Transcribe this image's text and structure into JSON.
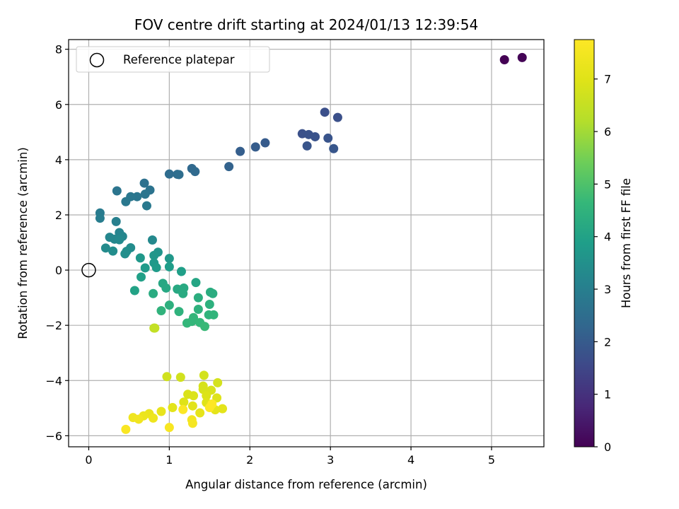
{
  "chart_data": {
    "type": "scatter",
    "title": "FOV centre drift starting at 2024/01/13 12:39:54",
    "xlabel": "Angular distance from reference (arcmin)",
    "ylabel": "Rotation from reference (arcmin)",
    "xlim": [
      -0.25,
      5.65
    ],
    "ylim": [
      -6.4,
      8.35
    ],
    "xticks": [
      0,
      1,
      2,
      3,
      4,
      5
    ],
    "yticks": [
      -6,
      -4,
      -2,
      0,
      2,
      4,
      6,
      8
    ],
    "grid": true,
    "legend": {
      "placement": "top-left",
      "entries": [
        "Reference platepar"
      ]
    },
    "reference_point": {
      "x": 0,
      "y": 0,
      "label": "Reference platepar"
    },
    "colorbar": {
      "label": "Hours from first FF file",
      "min": 0,
      "max": 7.75,
      "ticks": [
        0,
        1,
        2,
        3,
        4,
        5,
        6,
        7
      ],
      "colormap": "viridis"
    },
    "points": [
      {
        "x": 5.16,
        "y": 7.62,
        "h": 0.0
      },
      {
        "x": 5.38,
        "y": 7.7,
        "h": 0.05
      },
      {
        "x": 2.93,
        "y": 5.72,
        "h": 1.7
      },
      {
        "x": 3.09,
        "y": 5.53,
        "h": 1.72
      },
      {
        "x": 2.65,
        "y": 4.94,
        "h": 1.75
      },
      {
        "x": 2.73,
        "y": 4.91,
        "h": 1.78
      },
      {
        "x": 2.81,
        "y": 4.83,
        "h": 1.8
      },
      {
        "x": 2.97,
        "y": 4.78,
        "h": 1.82
      },
      {
        "x": 2.71,
        "y": 4.5,
        "h": 1.85
      },
      {
        "x": 3.04,
        "y": 4.4,
        "h": 1.88
      },
      {
        "x": 2.19,
        "y": 4.61,
        "h": 2.0
      },
      {
        "x": 2.07,
        "y": 4.46,
        "h": 2.05
      },
      {
        "x": 1.88,
        "y": 4.3,
        "h": 2.1
      },
      {
        "x": 1.74,
        "y": 3.75,
        "h": 2.2
      },
      {
        "x": 1.28,
        "y": 3.68,
        "h": 2.35
      },
      {
        "x": 1.32,
        "y": 3.57,
        "h": 2.38
      },
      {
        "x": 1.0,
        "y": 3.48,
        "h": 2.45
      },
      {
        "x": 1.1,
        "y": 3.47,
        "h": 2.48
      },
      {
        "x": 1.12,
        "y": 3.46,
        "h": 2.5
      },
      {
        "x": 0.69,
        "y": 3.15,
        "h": 2.6
      },
      {
        "x": 0.76,
        "y": 2.9,
        "h": 2.65
      },
      {
        "x": 0.35,
        "y": 2.87,
        "h": 2.7
      },
      {
        "x": 0.7,
        "y": 2.75,
        "h": 2.72
      },
      {
        "x": 0.6,
        "y": 2.66,
        "h": 2.75
      },
      {
        "x": 0.52,
        "y": 2.66,
        "h": 2.78
      },
      {
        "x": 0.46,
        "y": 2.48,
        "h": 2.8
      },
      {
        "x": 0.72,
        "y": 2.33,
        "h": 2.82
      },
      {
        "x": 0.14,
        "y": 2.07,
        "h": 2.9
      },
      {
        "x": 0.14,
        "y": 1.88,
        "h": 2.95
      },
      {
        "x": 0.34,
        "y": 1.76,
        "h": 3.05
      },
      {
        "x": 0.38,
        "y": 1.36,
        "h": 3.15
      },
      {
        "x": 0.42,
        "y": 1.22,
        "h": 3.2
      },
      {
        "x": 0.26,
        "y": 1.19,
        "h": 3.22
      },
      {
        "x": 0.32,
        "y": 1.12,
        "h": 3.25
      },
      {
        "x": 0.38,
        "y": 1.1,
        "h": 3.28
      },
      {
        "x": 0.79,
        "y": 1.09,
        "h": 3.3
      },
      {
        "x": 0.21,
        "y": 0.8,
        "h": 3.35
      },
      {
        "x": 0.52,
        "y": 0.81,
        "h": 3.38
      },
      {
        "x": 0.3,
        "y": 0.69,
        "h": 3.4
      },
      {
        "x": 0.47,
        "y": 0.68,
        "h": 3.42
      },
      {
        "x": 0.45,
        "y": 0.59,
        "h": 3.45
      },
      {
        "x": 0.86,
        "y": 0.65,
        "h": 3.6
      },
      {
        "x": 0.81,
        "y": 0.53,
        "h": 3.65
      },
      {
        "x": 1.0,
        "y": 0.42,
        "h": 3.7
      },
      {
        "x": 0.64,
        "y": 0.44,
        "h": 3.72
      },
      {
        "x": 0.81,
        "y": 0.26,
        "h": 3.75
      },
      {
        "x": 0.7,
        "y": 0.08,
        "h": 3.78
      },
      {
        "x": 0.84,
        "y": 0.09,
        "h": 3.8
      },
      {
        "x": 1.0,
        "y": 0.12,
        "h": 3.85
      },
      {
        "x": 1.15,
        "y": -0.05,
        "h": 3.9
      },
      {
        "x": 0.65,
        "y": -0.25,
        "h": 3.95
      },
      {
        "x": 0.57,
        "y": -0.74,
        "h": 4.0
      },
      {
        "x": 1.33,
        "y": -0.45,
        "h": 4.1
      },
      {
        "x": 0.92,
        "y": -0.48,
        "h": 4.15
      },
      {
        "x": 0.96,
        "y": -0.65,
        "h": 4.18
      },
      {
        "x": 1.1,
        "y": -0.69,
        "h": 4.2
      },
      {
        "x": 1.18,
        "y": -0.65,
        "h": 4.22
      },
      {
        "x": 1.17,
        "y": -0.85,
        "h": 4.25
      },
      {
        "x": 0.8,
        "y": -0.85,
        "h": 4.28
      },
      {
        "x": 1.51,
        "y": -0.8,
        "h": 4.3
      },
      {
        "x": 1.54,
        "y": -0.85,
        "h": 4.32
      },
      {
        "x": 1.36,
        "y": -1.0,
        "h": 4.35
      },
      {
        "x": 1.0,
        "y": -1.27,
        "h": 4.4
      },
      {
        "x": 1.5,
        "y": -1.24,
        "h": 4.42
      },
      {
        "x": 1.36,
        "y": -1.42,
        "h": 4.45
      },
      {
        "x": 1.12,
        "y": -1.5,
        "h": 4.48
      },
      {
        "x": 0.9,
        "y": -1.47,
        "h": 4.5
      },
      {
        "x": 1.49,
        "y": -1.62,
        "h": 4.52
      },
      {
        "x": 1.55,
        "y": -1.62,
        "h": 4.55
      },
      {
        "x": 1.3,
        "y": -1.72,
        "h": 4.58
      },
      {
        "x": 1.28,
        "y": -1.86,
        "h": 4.6
      },
      {
        "x": 1.22,
        "y": -1.92,
        "h": 4.62
      },
      {
        "x": 1.38,
        "y": -1.9,
        "h": 4.65
      },
      {
        "x": 1.44,
        "y": -2.04,
        "h": 4.7
      },
      {
        "x": 0.81,
        "y": -2.1,
        "h": 6.4
      },
      {
        "x": 0.82,
        "y": -2.1,
        "h": 6.45
      },
      {
        "x": 0.97,
        "y": -3.86,
        "h": 6.7
      },
      {
        "x": 1.14,
        "y": -3.88,
        "h": 6.72
      },
      {
        "x": 1.43,
        "y": -3.81,
        "h": 6.75
      },
      {
        "x": 1.6,
        "y": -4.08,
        "h": 6.78
      },
      {
        "x": 1.42,
        "y": -4.2,
        "h": 6.8
      },
      {
        "x": 1.42,
        "y": -4.32,
        "h": 6.82
      },
      {
        "x": 1.52,
        "y": -4.35,
        "h": 6.85
      },
      {
        "x": 1.23,
        "y": -4.5,
        "h": 6.88
      },
      {
        "x": 1.3,
        "y": -4.55,
        "h": 6.9
      },
      {
        "x": 1.46,
        "y": -4.55,
        "h": 6.92
      },
      {
        "x": 1.59,
        "y": -4.63,
        "h": 6.95
      },
      {
        "x": 1.18,
        "y": -4.78,
        "h": 6.98
      },
      {
        "x": 1.46,
        "y": -4.8,
        "h": 7.0
      },
      {
        "x": 1.5,
        "y": -4.88,
        "h": 7.02
      },
      {
        "x": 1.29,
        "y": -4.92,
        "h": 7.05
      },
      {
        "x": 1.04,
        "y": -4.98,
        "h": 7.08
      },
      {
        "x": 1.66,
        "y": -5.02,
        "h": 7.1
      },
      {
        "x": 1.57,
        "y": -5.06,
        "h": 7.12
      },
      {
        "x": 1.38,
        "y": -5.17,
        "h": 7.15
      },
      {
        "x": 0.9,
        "y": -5.12,
        "h": 7.2
      },
      {
        "x": 0.75,
        "y": -5.2,
        "h": 7.25
      },
      {
        "x": 0.68,
        "y": -5.28,
        "h": 7.3
      },
      {
        "x": 0.8,
        "y": -5.36,
        "h": 7.35
      },
      {
        "x": 0.55,
        "y": -5.34,
        "h": 7.4
      },
      {
        "x": 0.62,
        "y": -5.4,
        "h": 7.45
      },
      {
        "x": 1.28,
        "y": -5.42,
        "h": 7.5
      },
      {
        "x": 1.29,
        "y": -5.55,
        "h": 7.55
      },
      {
        "x": 1.0,
        "y": -5.7,
        "h": 7.6
      },
      {
        "x": 0.46,
        "y": -5.77,
        "h": 7.65
      },
      {
        "x": 1.17,
        "y": -5.05,
        "h": 7.7
      },
      {
        "x": 1.5,
        "y": -4.98,
        "h": 7.72
      },
      {
        "x": 1.53,
        "y": -4.85,
        "h": 7.75
      }
    ]
  }
}
